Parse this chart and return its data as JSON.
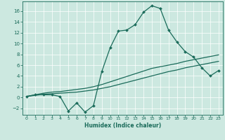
{
  "title": "",
  "xlabel": "Humidex (Indice chaleur)",
  "bg_color": "#cce8e0",
  "line_color": "#1a6b5a",
  "xlim": [
    -0.5,
    23.5
  ],
  "ylim": [
    -3.2,
    17.8
  ],
  "xticks": [
    0,
    1,
    2,
    3,
    4,
    5,
    6,
    7,
    8,
    9,
    10,
    11,
    12,
    13,
    14,
    15,
    16,
    17,
    18,
    19,
    20,
    21,
    22,
    23
  ],
  "yticks": [
    -2,
    0,
    2,
    4,
    6,
    8,
    10,
    12,
    14,
    16
  ],
  "series1_x": [
    0,
    1,
    2,
    3,
    4,
    5,
    6,
    7,
    8,
    9,
    10,
    11,
    12,
    13,
    14,
    15,
    16,
    17,
    18,
    19,
    20,
    21,
    22,
    23
  ],
  "series1_y": [
    0.2,
    0.5,
    0.5,
    0.5,
    0.2,
    -2.5,
    -1.0,
    -2.7,
    -1.5,
    4.8,
    9.2,
    12.3,
    12.5,
    13.5,
    15.8,
    17.0,
    16.5,
    12.5,
    10.3,
    8.5,
    7.5,
    5.5,
    4.0,
    5.0
  ],
  "series2_x": [
    0,
    1,
    2,
    3,
    4,
    5,
    6,
    7,
    8,
    9,
    10,
    11,
    12,
    13,
    14,
    15,
    16,
    17,
    18,
    19,
    20,
    21,
    22,
    23
  ],
  "series2_y": [
    0.2,
    0.4,
    0.6,
    0.7,
    0.8,
    0.9,
    1.0,
    1.2,
    1.4,
    1.7,
    2.0,
    2.4,
    2.8,
    3.2,
    3.6,
    4.0,
    4.4,
    4.8,
    5.1,
    5.5,
    5.8,
    6.1,
    6.4,
    6.7
  ],
  "series3_x": [
    0,
    1,
    2,
    3,
    4,
    5,
    6,
    7,
    8,
    9,
    10,
    11,
    12,
    13,
    14,
    15,
    16,
    17,
    18,
    19,
    20,
    21,
    22,
    23
  ],
  "series3_y": [
    0.2,
    0.5,
    0.8,
    1.0,
    1.1,
    1.3,
    1.5,
    1.7,
    2.0,
    2.4,
    2.9,
    3.4,
    3.9,
    4.4,
    4.9,
    5.4,
    5.7,
    6.0,
    6.3,
    6.7,
    7.0,
    7.3,
    7.6,
    7.9
  ],
  "xlabel_fontsize": 5.5,
  "tick_fontsize_x": 4.5,
  "tick_fontsize_y": 5.0,
  "grid_color": "#ffffff",
  "spine_color": "#1a6b5a"
}
